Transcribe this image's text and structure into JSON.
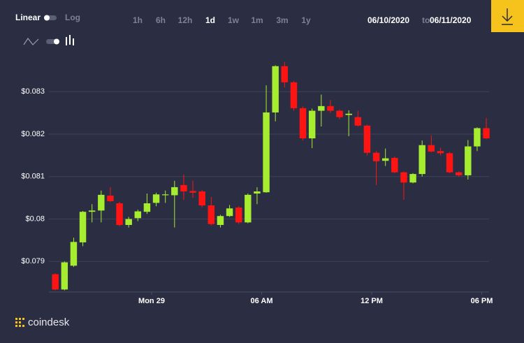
{
  "controls": {
    "scale_options": [
      "Linear",
      "Log"
    ],
    "ranges": [
      "1h",
      "6h",
      "12h",
      "1d",
      "1w",
      "1m",
      "3m",
      "1y"
    ],
    "active_range": 3,
    "date_from": "06/10/2020",
    "date_separator": "to",
    "date_to": "06/11/2020"
  },
  "brand": "coindesk",
  "chart_data": {
    "type": "candlestick",
    "up_color": "#a6ec2f",
    "down_color": "#ff1414",
    "grid": true,
    "x": [
      -5.25,
      -4.75,
      -4.25,
      -3.75,
      -3.25,
      -2.75,
      -2.25,
      -1.75,
      -1.25,
      -0.75,
      -0.25,
      0.25,
      0.75,
      1.25,
      1.75,
      2.25,
      2.75,
      3.25,
      3.75,
      4.25,
      4.75,
      5.25,
      5.75,
      6.25,
      6.75,
      7.25,
      7.75,
      8.25,
      8.75,
      9.25,
      9.75,
      10.25,
      10.75,
      11.25,
      11.75,
      12.25,
      12.75,
      13.25,
      13.75,
      14.25,
      14.75,
      15.25,
      15.75,
      16.25,
      16.75,
      17.25,
      17.75,
      18.25
    ],
    "open": [
      0.0787,
      0.07834,
      0.0789,
      0.07945,
      0.08017,
      0.0802,
      0.08055,
      0.08037,
      0.07986,
      0.08002,
      0.08017,
      0.08038,
      0.08056,
      0.08056,
      0.0808,
      0.08066,
      0.08065,
      0.08032,
      0.07986,
      0.08007,
      0.08027,
      0.07992,
      0.0806,
      0.08063,
      0.08251,
      0.0836,
      0.08322,
      0.08261,
      0.0819,
      0.08255,
      0.08266,
      0.08255,
      0.08245,
      0.0824,
      0.0822,
      0.08156,
      0.08137,
      0.08144,
      0.0811,
      0.08086,
      0.08106,
      0.08174,
      0.0816,
      0.08155,
      0.0811,
      0.08103,
      0.08171,
      0.08214
    ],
    "high": [
      0.07872,
      0.079,
      0.07956,
      0.08019,
      0.08035,
      0.08067,
      0.08075,
      0.0804,
      0.08005,
      0.08022,
      0.0806,
      0.08062,
      0.08067,
      0.0809,
      0.08105,
      0.0809,
      0.08068,
      0.08052,
      0.0801,
      0.08033,
      0.0803,
      0.0806,
      0.08075,
      0.08315,
      0.08362,
      0.0837,
      0.08325,
      0.08265,
      0.0826,
      0.08293,
      0.0828,
      0.08258,
      0.08256,
      0.08255,
      0.08222,
      0.0816,
      0.08166,
      0.08147,
      0.08112,
      0.08108,
      0.08185,
      0.08197,
      0.08168,
      0.08158,
      0.08112,
      0.08186,
      0.08216,
      0.08238
    ],
    "low": [
      0.07832,
      0.07832,
      0.07887,
      0.07936,
      0.07992,
      0.07992,
      0.0804,
      0.07983,
      0.0798,
      0.07995,
      0.08012,
      0.0803,
      0.08038,
      0.0798,
      0.08045,
      0.0805,
      0.08028,
      0.07985,
      0.0798,
      0.08005,
      0.07988,
      0.0799,
      0.08035,
      0.08062,
      0.0823,
      0.0831,
      0.08255,
      0.08185,
      0.08167,
      0.08218,
      0.0825,
      0.08235,
      0.08195,
      0.08218,
      0.0815,
      0.0808,
      0.08125,
      0.08108,
      0.08045,
      0.08084,
      0.081,
      0.08157,
      0.0815,
      0.08108,
      0.081,
      0.08093,
      0.0816,
      0.08188
    ],
    "close": [
      0.07834,
      0.07898,
      0.07946,
      0.08017,
      0.0802,
      0.08057,
      0.08042,
      0.07986,
      0.08,
      0.08018,
      0.08037,
      0.08058,
      0.08058,
      0.08075,
      0.08065,
      0.08062,
      0.08032,
      0.07988,
      0.08007,
      0.08025,
      0.07992,
      0.08057,
      0.08065,
      0.08251,
      0.0836,
      0.08322,
      0.08261,
      0.0819,
      0.08255,
      0.08266,
      0.08255,
      0.0824,
      0.08248,
      0.0822,
      0.08156,
      0.08136,
      0.08143,
      0.0811,
      0.08086,
      0.08106,
      0.08174,
      0.08159,
      0.08155,
      0.0811,
      0.08103,
      0.08171,
      0.08214,
      0.0819
    ],
    "xlim": [
      -5.6,
      18.4
    ],
    "xticks": [
      {
        "value": 0,
        "label": "Mon 29"
      },
      {
        "value": 6,
        "label": "06 AM"
      },
      {
        "value": 12,
        "label": "12 PM"
      },
      {
        "value": 18,
        "label": "06 PM"
      }
    ],
    "ylim": [
      0.07833,
      0.08376
    ],
    "yticks": [
      {
        "value": 0.079,
        "label": "$0.079"
      },
      {
        "value": 0.08,
        "label": "$0.08"
      },
      {
        "value": 0.081,
        "label": "$0.081"
      },
      {
        "value": 0.082,
        "label": "$0.082"
      },
      {
        "value": 0.083,
        "label": "$0.083"
      }
    ]
  }
}
